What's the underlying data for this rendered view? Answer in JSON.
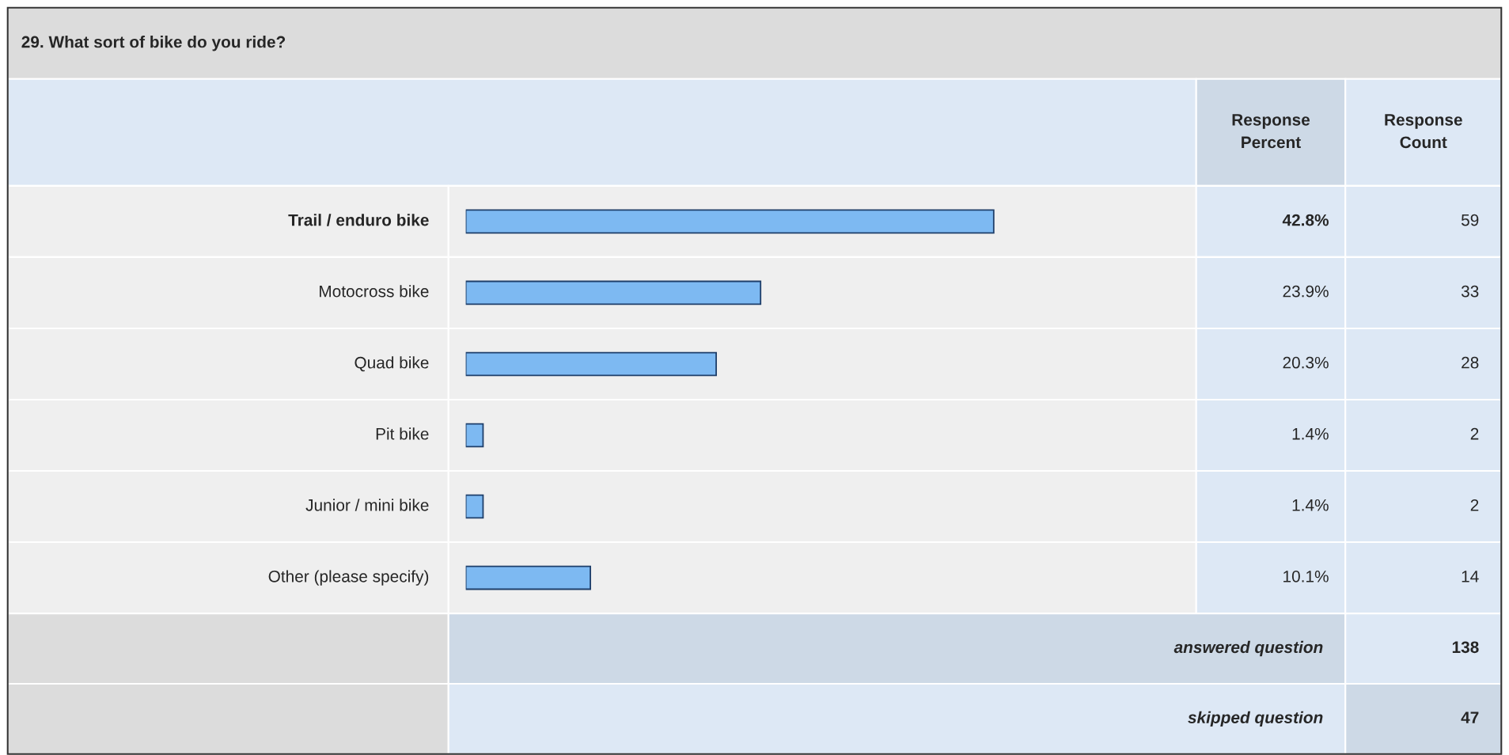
{
  "chart_data": {
    "type": "bar",
    "orientation": "horizontal",
    "title": "29. What sort of bike do you ride?",
    "categories": [
      "Trail / enduro bike",
      "Motocross bike",
      "Quad bike",
      "Pit bike",
      "Junior / mini bike",
      "Other (please specify)"
    ],
    "values": [
      42.8,
      23.9,
      20.3,
      1.4,
      1.4,
      10.1
    ],
    "value_labels": [
      "42.8%",
      "23.9%",
      "20.3%",
      "1.4%",
      "1.4%",
      "10.1%"
    ],
    "color": "#7db9f2",
    "annotations": [
      "Response Percent",
      "Response Count",
      "59",
      "33",
      "28",
      "2",
      "2",
      "14",
      "answered question",
      "138",
      "skipped question",
      "47"
    ]
  }
}
